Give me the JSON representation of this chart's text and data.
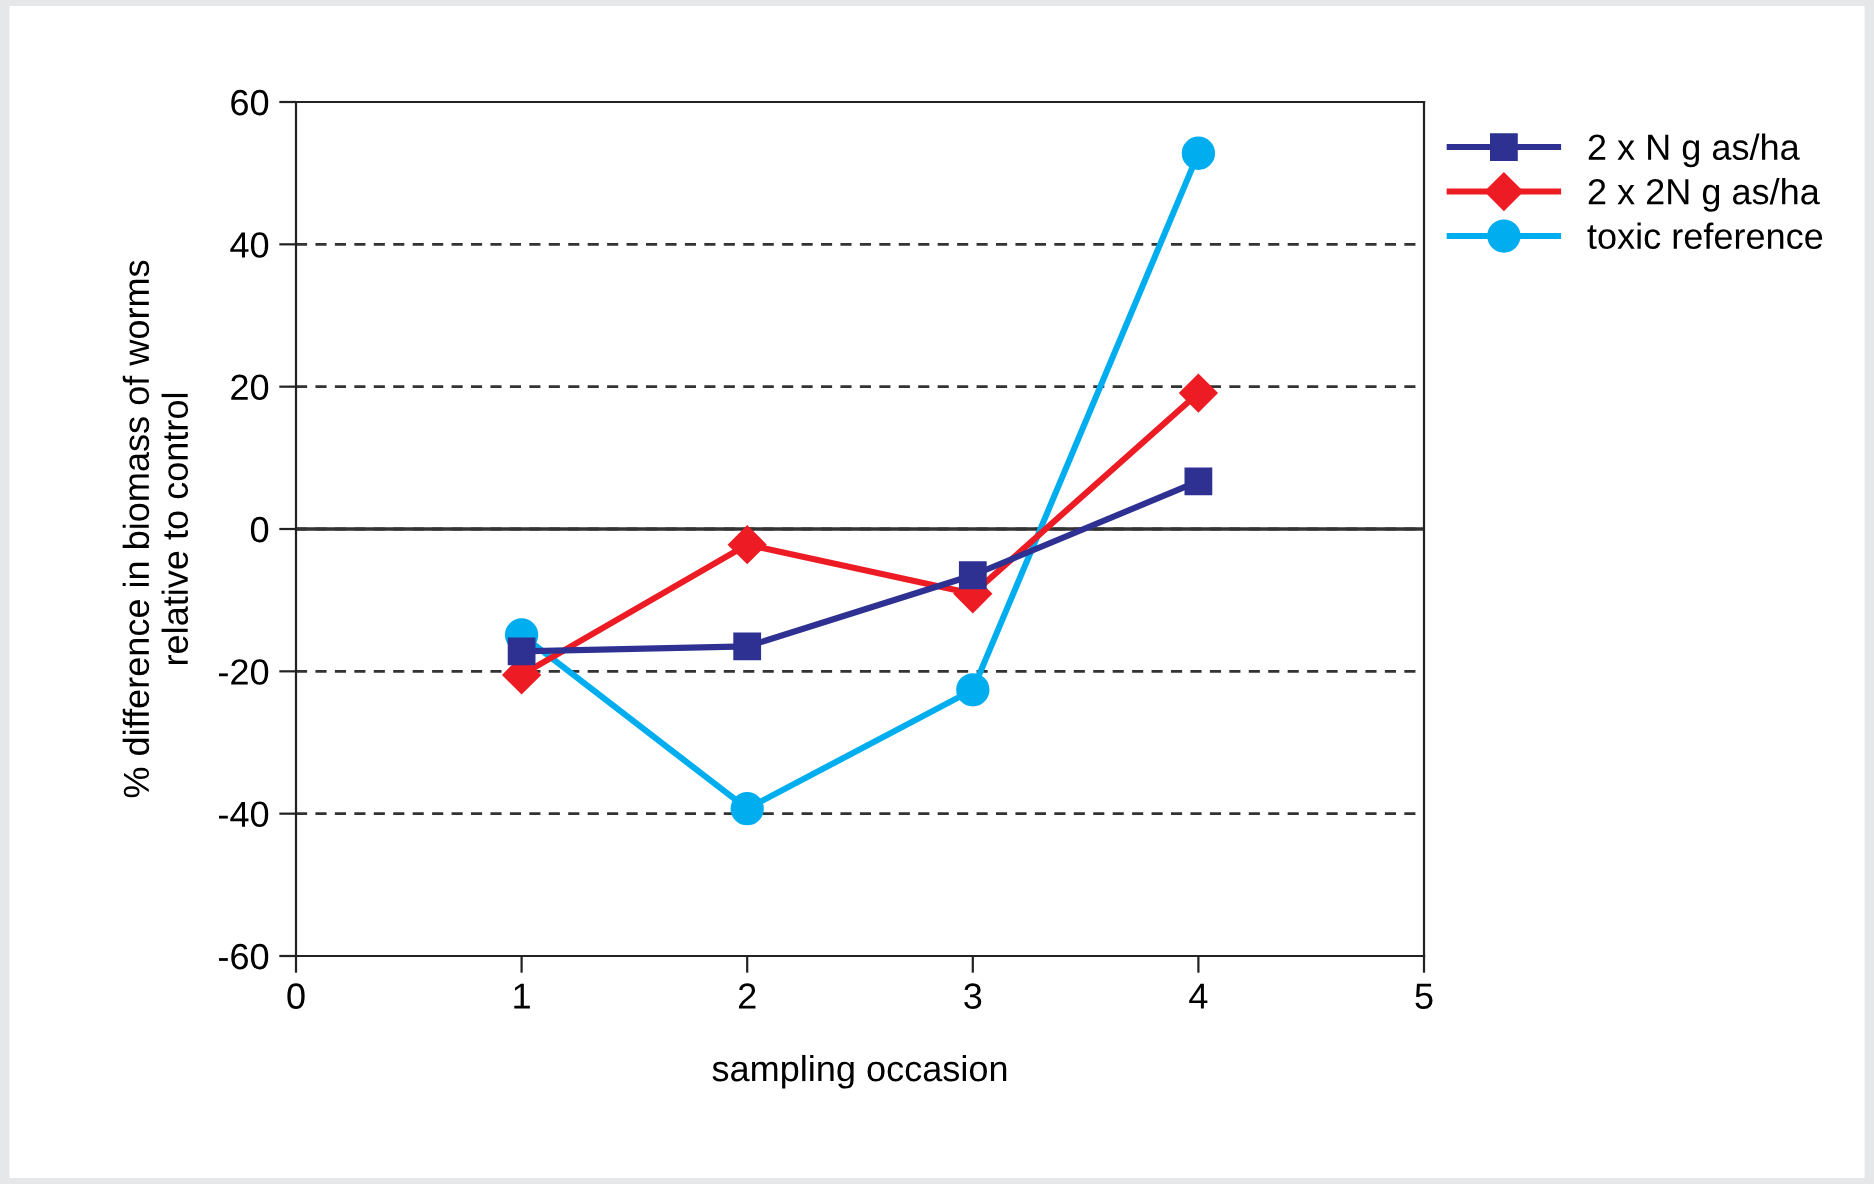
{
  "chart_data": {
    "type": "line",
    "xlabel": "sampling occasion",
    "ylabel": "% difference in biomass of worms\nrelative to control",
    "x": [
      1,
      2,
      3,
      4
    ],
    "xlim": [
      0,
      5
    ],
    "xticks": [
      0,
      1,
      2,
      3,
      4,
      5
    ],
    "ylim": [
      -60,
      60
    ],
    "yticks": [
      -60,
      -40,
      -20,
      0,
      20,
      40,
      60
    ],
    "grid": "y",
    "legend": "top right",
    "ref_lines": [
      {
        "axis": "y",
        "value": 0,
        "color": "#333333",
        "line_style": "solid"
      }
    ],
    "series": [
      {
        "name": "2 x N g as/ha",
        "color": "#2e3192",
        "marker": "square",
        "values": [
          -17.2,
          -16.5,
          -6.5,
          6.7
        ]
      },
      {
        "name": "2 x 2N g as/ha",
        "color": "#ed1c24",
        "marker": "diamond",
        "values": [
          -20.5,
          -2.2,
          -9.1,
          19.1
        ]
      },
      {
        "name": "toxic reference",
        "color": "#00aeef",
        "marker": "circle",
        "values": [
          -14.9,
          -39.3,
          -22.6,
          52.8
        ]
      }
    ]
  }
}
